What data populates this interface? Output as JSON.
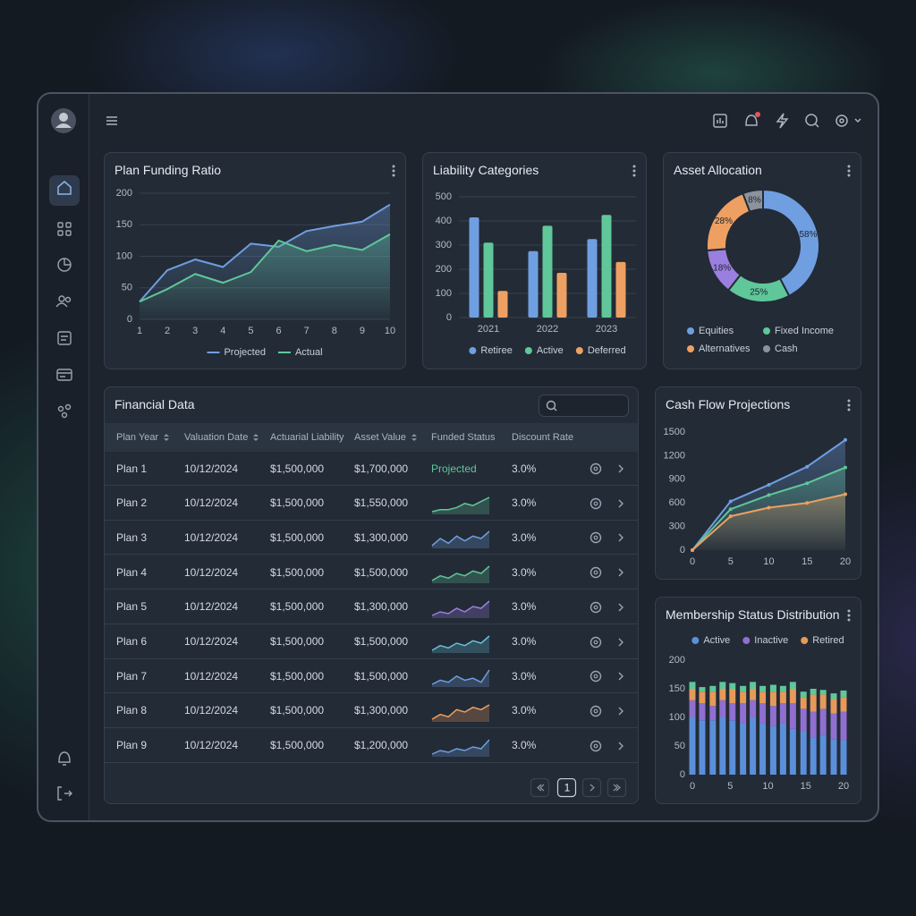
{
  "chart_data": [
    {
      "type": "line",
      "title": "Plan Funding Ratio",
      "fill_area": true,
      "grid": true,
      "x": [
        1,
        2,
        3,
        4,
        5,
        6,
        7,
        8,
        9,
        10
      ],
      "xlim": [
        1,
        10
      ],
      "xticks": [
        1,
        2,
        3,
        4,
        5,
        6,
        7,
        8,
        9,
        10
      ],
      "ylim": [
        0,
        200
      ],
      "yticks": [
        0,
        50,
        100,
        150,
        200
      ],
      "series": [
        {
          "name": "Projected",
          "color": "#6f9fe0",
          "values": [
            28,
            78,
            95,
            83,
            120,
            115,
            140,
            148,
            155,
            182
          ]
        },
        {
          "name": "Actual",
          "color": "#5fc79a",
          "values": [
            28,
            48,
            72,
            58,
            75,
            125,
            108,
            118,
            110,
            135
          ]
        }
      ]
    },
    {
      "type": "bar",
      "title": "Liability Categories",
      "grid": true,
      "categories": [
        "2021",
        "2022",
        "2023"
      ],
      "ylim": [
        0,
        500
      ],
      "yticks": [
        0,
        100,
        200,
        300,
        400,
        500
      ],
      "series": [
        {
          "name": "Retiree",
          "color": "#6f9fe0",
          "values": [
            415,
            275,
            325
          ]
        },
        {
          "name": "Active",
          "color": "#5fc79a",
          "values": [
            310,
            380,
            425
          ]
        },
        {
          "name": "Deferred",
          "color": "#eea062",
          "values": [
            110,
            185,
            230
          ]
        }
      ]
    },
    {
      "type": "pie",
      "title": "Asset Allocation",
      "donut": true,
      "categories": [
        "Equities",
        "Fixed Income",
        null,
        "Alternatives",
        "Cash"
      ],
      "values": [
        58,
        25,
        18,
        28,
        8
      ],
      "value_labels": [
        "58%",
        "25%",
        "18%",
        "28%",
        "8%"
      ],
      "colors": [
        "#6f9fe0",
        "#5fc79a",
        "#9b7fe0",
        "#eea062",
        "#8c939c"
      ]
    },
    {
      "type": "line",
      "title": "Cash Flow Projections",
      "fill_area": true,
      "markers": true,
      "grid": false,
      "x": [
        0,
        5,
        10,
        15,
        20
      ],
      "xlim": [
        0,
        20
      ],
      "xticks": [
        0,
        5,
        10,
        15,
        20
      ],
      "ylim": [
        0,
        1500
      ],
      "yticks": [
        0,
        300,
        600,
        900,
        1200,
        1500
      ],
      "series": [
        {
          "color": "#6f9fe0",
          "values": [
            0,
            620,
            830,
            1060,
            1400
          ]
        },
        {
          "color": "#5fc79a",
          "values": [
            0,
            520,
            700,
            850,
            1050
          ]
        },
        {
          "color": "#eea062",
          "values": [
            0,
            430,
            540,
            600,
            710
          ]
        }
      ]
    },
    {
      "type": "stacked_bar",
      "title": "Membership Status Distribution",
      "grid": false,
      "x": [
        0,
        1.3,
        2.7,
        4,
        5.3,
        6.7,
        8,
        9.3,
        10.7,
        12,
        13.3,
        14.7,
        16,
        17.3,
        18.7,
        20
      ],
      "xlim": [
        0,
        20
      ],
      "xticks": [
        0,
        5,
        10,
        15,
        20
      ],
      "ylim": [
        0,
        200
      ],
      "yticks": [
        0,
        50,
        100,
        150,
        200
      ],
      "series": [
        {
          "name": "Active",
          "color": "#5b8fd9",
          "values": [
            100,
            95,
            95,
            100,
            95,
            90,
            100,
            90,
            85,
            90,
            80,
            75,
            65,
            70,
            62,
            60
          ]
        },
        {
          "name": "Inactive",
          "color": "#8f6fd0",
          "values": [
            30,
            30,
            25,
            30,
            30,
            35,
            30,
            35,
            35,
            35,
            45,
            40,
            45,
            45,
            45,
            50
          ]
        },
        {
          "name": "Retired",
          "color": "#e59a5a",
          "values": [
            20,
            20,
            25,
            20,
            25,
            20,
            20,
            20,
            25,
            20,
            25,
            20,
            30,
            25,
            25,
            25
          ]
        },
        {
          "color": "#5fc79a",
          "values": [
            12,
            8,
            10,
            12,
            10,
            10,
            12,
            10,
            12,
            10,
            12,
            10,
            10,
            8,
            10,
            12
          ]
        }
      ]
    }
  ],
  "table": {
    "title": "Financial Data",
    "columns": [
      "Plan Year",
      "Valuation Date",
      "Actuarial Liability",
      "Asset Value",
      "Funded Status",
      "Discount Rate"
    ],
    "rows": [
      [
        "Plan 1",
        "10/12/2024",
        "$1,500,000",
        "$1,700,000",
        "Projected",
        "3.0%"
      ],
      [
        "Plan 2",
        "10/12/2024",
        "$1,500,000",
        "$1,550,000",
        null,
        "3.0%"
      ],
      [
        "Plan 3",
        "10/12/2024",
        "$1,500,000",
        "$1,300,000",
        null,
        "3.0%"
      ],
      [
        "Plan 4",
        "10/12/2024",
        "$1,500,000",
        "$1,500,000",
        null,
        "3.0%"
      ],
      [
        "Plan 5",
        "10/12/2024",
        "$1,500,000",
        "$1,300,000",
        null,
        "3.0%"
      ],
      [
        "Plan 6",
        "10/12/2024",
        "$1,500,000",
        "$1,500,000",
        null,
        "3.0%"
      ],
      [
        "Plan 7",
        "10/12/2024",
        "$1,500,000",
        "$1,500,000",
        null,
        "3.0%"
      ],
      [
        "Plan 8",
        "10/12/2024",
        "$1,500,000",
        "$1,300,000",
        null,
        "3.0%"
      ],
      [
        "Plan 9",
        "10/12/2024",
        "$1,500,000",
        "$1,200,000",
        null,
        "3.0%"
      ]
    ],
    "trends": [
      null,
      {
        "color": "#5fc79a",
        "values": [
          2,
          3,
          3,
          4,
          6,
          5,
          7,
          9
        ]
      },
      {
        "color": "#6f9fe0",
        "values": [
          2,
          5,
          3,
          6,
          4,
          6,
          5,
          8
        ]
      },
      {
        "color": "#5fc79a",
        "values": [
          2,
          4,
          3,
          5,
          4,
          6,
          5,
          8
        ]
      },
      {
        "color": "#9b7fe0",
        "values": [
          1,
          3,
          2,
          5,
          3,
          6,
          5,
          9
        ]
      },
      {
        "color": "#63c0d6",
        "values": [
          2,
          4,
          3,
          5,
          4,
          6,
          5,
          8
        ]
      },
      {
        "color": "#6f9fe0",
        "values": [
          2,
          4,
          3,
          6,
          4,
          5,
          3,
          9
        ]
      },
      {
        "color": "#eea062",
        "values": [
          2,
          4,
          3,
          6,
          5,
          7,
          6,
          8
        ]
      },
      {
        "color": "#6f9fe0",
        "values": [
          1,
          3,
          2,
          4,
          3,
          5,
          4,
          9
        ]
      }
    ],
    "page": 1
  }
}
